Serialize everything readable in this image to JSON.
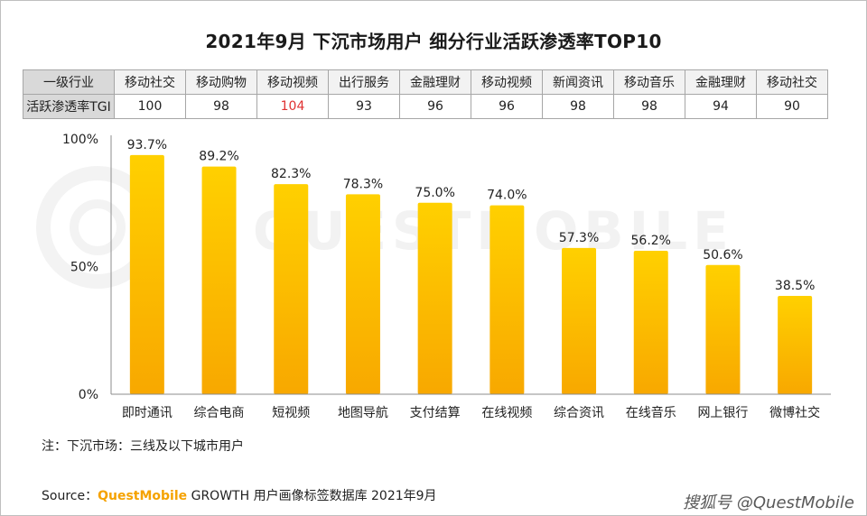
{
  "title": "2021年9月 下沉市场用户 细分行业活跃渗透率TOP10",
  "table": {
    "row1_label": "一级行业",
    "row2_label": "活跃渗透率TGI",
    "categories": [
      "移动社交",
      "移动购物",
      "移动视频",
      "出行服务",
      "金融理财",
      "移动视频",
      "新闻资讯",
      "移动音乐",
      "金融理财",
      "移动社交"
    ],
    "tgi": [
      "100",
      "98",
      "104",
      "93",
      "96",
      "96",
      "98",
      "98",
      "94",
      "90"
    ],
    "highlight_color": "#e03131"
  },
  "chart_data": {
    "type": "bar",
    "title": "2021年9月 下沉市场用户 细分行业活跃渗透率TOP10",
    "categories": [
      "即时通讯",
      "综合电商",
      "短视频",
      "地图导航",
      "支付结算",
      "在线视频",
      "综合资讯",
      "在线音乐",
      "网上银行",
      "微博社交"
    ],
    "values": [
      93.7,
      89.2,
      82.3,
      78.3,
      75.0,
      74.0,
      57.3,
      56.2,
      50.6,
      38.5
    ],
    "value_labels": [
      "93.7%",
      "89.2%",
      "82.3%",
      "78.3%",
      "75.0%",
      "74.0%",
      "57.3%",
      "56.2%",
      "50.6%",
      "38.5%"
    ],
    "yticks": [
      "0%",
      "50%",
      "100%"
    ],
    "ylim": [
      0,
      100
    ],
    "xlabel": "",
    "ylabel": "",
    "grid": false,
    "bar_color_top": "#ffd000",
    "bar_color_bottom": "#f8a800"
  },
  "note": "注：下沉市场：三线及以下城市用户",
  "source": {
    "prefix": "Source：",
    "brand": "QuestMobile",
    "text": " GROWTH 用户画像标签数据库 2021年9月"
  },
  "watermark": "QUESTMOBILE",
  "credit": "搜狐号 @QuestMobile"
}
